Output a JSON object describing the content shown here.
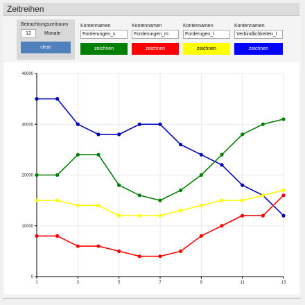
{
  "window": {
    "title": "Zeitreihen"
  },
  "controls": {
    "period_label": "Betrachtungszeitraum",
    "period_value": "12",
    "period_unit": "Monate",
    "clear_label": "clear",
    "accounts": [
      {
        "header": "Kontennamen",
        "value": "Forderungen_s",
        "button": "zeichnen",
        "color": "#008000",
        "text_color": "#ffffff"
      },
      {
        "header": "Kontennamen",
        "value": "Forderungen_m",
        "button": "zeichnen",
        "color": "#ff0000",
        "text_color": "#ffffff"
      },
      {
        "header": "Kontennamen",
        "value": "Forderugen_l",
        "button": "zeichnen",
        "color": "#ffff00",
        "text_color": "#000000"
      },
      {
        "header": "Kontennamen",
        "value": "Verbindlichkeiten_l",
        "button": "zeichnen",
        "color": "#0000ff",
        "text_color": "#ffffff"
      }
    ],
    "clear_color": "#4f81bd"
  },
  "chart_data": {
    "type": "line",
    "title": "",
    "xlabel": "",
    "ylabel": "",
    "x": [
      1,
      2,
      3,
      4,
      5,
      6,
      7,
      8,
      9,
      10,
      11,
      12,
      13
    ],
    "xticks": [
      1,
      3,
      5,
      7,
      9,
      11,
      13
    ],
    "yticks": [
      0,
      10000,
      20000,
      30000,
      40000
    ],
    "xlim": [
      1,
      13
    ],
    "ylim": [
      0,
      40000
    ],
    "grid": true,
    "series": [
      {
        "color": "#0000bb",
        "values": [
          35000,
          35000,
          30000,
          28000,
          28000,
          30000,
          30000,
          26000,
          24000,
          22000,
          18000,
          16000,
          12000
        ]
      },
      {
        "color": "#008000",
        "values": [
          20000,
          20000,
          24000,
          24000,
          18000,
          16000,
          15000,
          17000,
          20000,
          24000,
          28000,
          30000,
          31000
        ]
      },
      {
        "color": "#ffff00",
        "values": [
          15000,
          15000,
          14000,
          14000,
          12000,
          12000,
          12000,
          13000,
          14000,
          15000,
          15000,
          16000,
          17000
        ]
      },
      {
        "color": "#ff0000",
        "values": [
          8000,
          8000,
          6000,
          6000,
          5000,
          4000,
          4000,
          5000,
          8000,
          10000,
          12000,
          12000,
          16000
        ]
      }
    ]
  }
}
